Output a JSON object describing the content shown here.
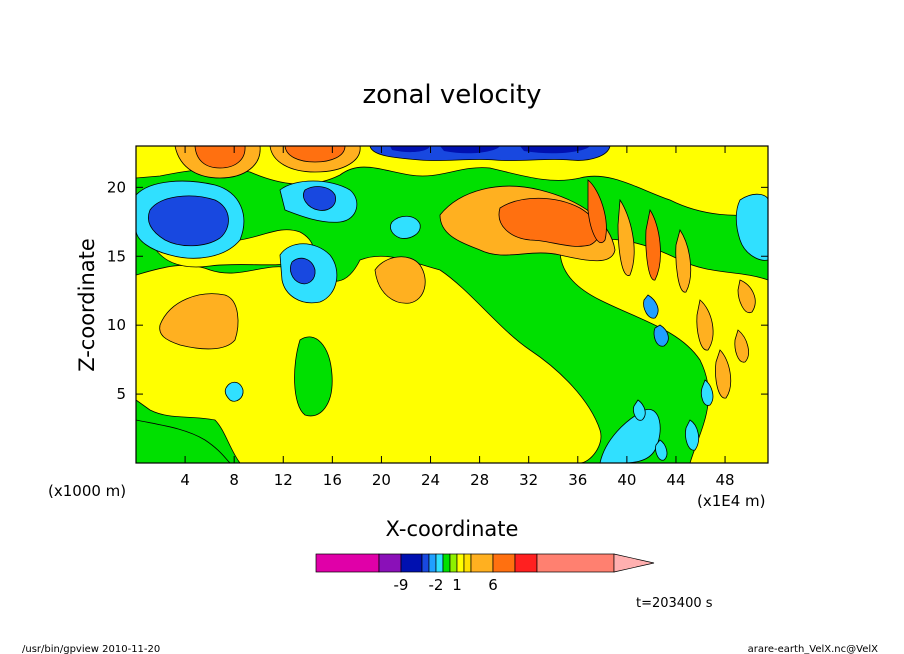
{
  "chart_data": {
    "type": "heatmap",
    "title": "zonal velocity",
    "xlabel": "X-coordinate",
    "ylabel": "Z-coordinate",
    "x_unit": "(x1E4 m)",
    "y_unit": "(x1000 m)",
    "xlim": [
      0,
      51.5
    ],
    "ylim": [
      0,
      23
    ],
    "x_ticks": [
      4,
      8,
      12,
      16,
      20,
      24,
      28,
      32,
      36,
      40,
      44,
      48
    ],
    "y_ticks": [
      5,
      10,
      15,
      20
    ],
    "time_label": "t=203400 s",
    "colorbar": {
      "tick_labels": [
        "-9",
        "-2",
        "1",
        "6"
      ],
      "tick_values": [
        -9,
        -2,
        1,
        6
      ],
      "colors": [
        "#e000a8",
        "#8a10b8",
        "#0010b0",
        "#1848e0",
        "#20a0ff",
        "#30e0ff",
        "#00e000",
        "#8ef000",
        "#ffff00",
        "#ffe000",
        "#ffb020",
        "#ff7010",
        "#ff2020",
        "#ff8070",
        "#ffb0b0"
      ]
    }
  },
  "footer": {
    "left": "/usr/bin/gpview   2010-11-20",
    "right": "arare-earth_VelX.nc@VelX"
  }
}
